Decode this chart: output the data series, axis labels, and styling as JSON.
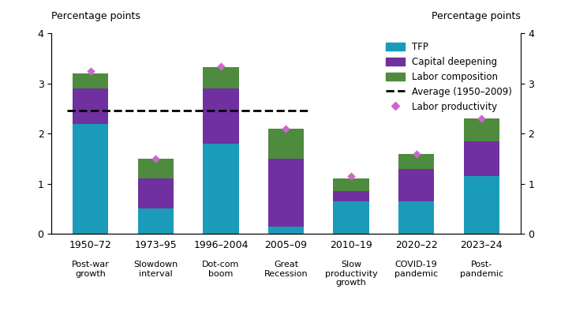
{
  "categories": [
    "1950–72",
    "1973–95",
    "1996–2004",
    "2005–09",
    "2010–19",
    "2020–22",
    "2023–24"
  ],
  "sublabels": [
    "Post-war\ngrowth",
    "Slowdown\ninterval",
    "Dot-com\nboom",
    "Great\nRecession",
    "Slow\nproductivity\ngrowth",
    "COVID-19\npandemic",
    "Post-\npandemic"
  ],
  "tfp": [
    2.2,
    0.5,
    1.8,
    0.15,
    0.65,
    0.65,
    1.15
  ],
  "capital": [
    0.7,
    0.6,
    1.1,
    1.35,
    0.2,
    0.65,
    0.7
  ],
  "labor": [
    0.3,
    0.4,
    0.43,
    0.6,
    0.25,
    0.3,
    0.45
  ],
  "diamond": [
    3.25,
    1.5,
    3.35,
    2.1,
    1.15,
    1.6,
    2.3
  ],
  "average_line": 2.46,
  "color_tfp": "#1a9bba",
  "color_capital": "#7030a0",
  "color_labor": "#4e8b3f",
  "color_diamond": "#cc66cc",
  "color_avg_line": "#000000",
  "ylim": [
    0,
    4
  ],
  "yticks": [
    0,
    1,
    2,
    3,
    4
  ],
  "ylabel": "Percentage points",
  "avg_label": "Average (1950–2009)",
  "legend_tfp": "TFP",
  "legend_capital": "Capital deepening",
  "legend_labor": "Labor composition",
  "legend_diamond": "Labor productivity",
  "bar_width": 0.55
}
